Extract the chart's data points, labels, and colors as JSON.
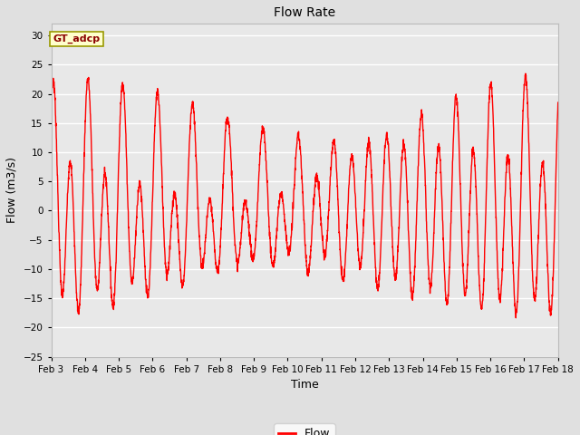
{
  "title": "Flow Rate",
  "xlabel": "Time",
  "ylabel": "Flow (m3/s)",
  "ylim": [
    -25,
    32
  ],
  "yticks": [
    -25,
    -20,
    -15,
    -10,
    -5,
    0,
    5,
    10,
    15,
    20,
    25,
    30
  ],
  "line_color": "red",
  "line_width": 1.0,
  "figure_bg": "#e0e0e0",
  "plot_bg": "#e8e8e8",
  "grid_color": "white",
  "annotation_label": "GT_adcp",
  "annotation_bg": "#ffffcc",
  "annotation_border": "#999900",
  "legend_label": "Flow",
  "xlim": [
    3,
    18
  ],
  "x_tick_labels": [
    "Feb 3",
    "Feb 4",
    "Feb 5",
    "Feb 6",
    "Feb 7",
    "Feb 8",
    "Feb 9",
    "Feb 10",
    "Feb 11",
    "Feb 12",
    "Feb 13",
    "Feb 14",
    "Feb 15",
    "Feb 16",
    "Feb 17",
    "Feb 18"
  ],
  "x_tick_positions": [
    3,
    4,
    5,
    6,
    7,
    8,
    9,
    10,
    11,
    12,
    13,
    14,
    15,
    16,
    17,
    18
  ]
}
